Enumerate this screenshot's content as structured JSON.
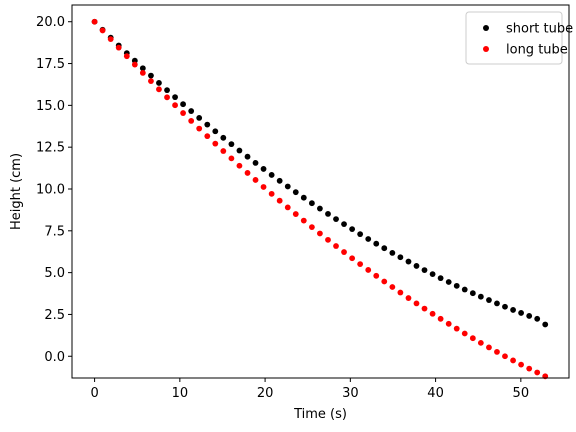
{
  "chart_data": {
    "type": "scatter",
    "title": "",
    "xlabel": "Time (s)",
    "ylabel": "Height (cm)",
    "xlim": [
      -2.65,
      55.65
    ],
    "ylim": [
      -1.3,
      21.0
    ],
    "xticks": [
      0,
      10,
      20,
      30,
      40,
      50
    ],
    "xtick_labels": [
      "0",
      "10",
      "20",
      "30",
      "40",
      "50"
    ],
    "yticks": [
      0.0,
      2.5,
      5.0,
      7.5,
      10.0,
      12.5,
      15.0,
      17.5,
      20.0
    ],
    "ytick_labels": [
      "0.0",
      "2.5",
      "5.0",
      "7.5",
      "10.0",
      "12.5",
      "15.0",
      "17.5",
      "20.0"
    ],
    "grid": false,
    "legend_position": "top-right",
    "x": [
      0.0,
      0.94,
      1.89,
      2.83,
      3.78,
      4.72,
      5.66,
      6.61,
      7.55,
      8.5,
      9.44,
      10.38,
      11.33,
      12.27,
      13.22,
      14.16,
      15.1,
      16.05,
      16.99,
      17.94,
      18.88,
      19.82,
      20.77,
      21.71,
      22.66,
      23.6,
      24.54,
      25.49,
      26.43,
      27.38,
      28.32,
      29.26,
      30.21,
      31.15,
      32.1,
      33.04,
      33.98,
      34.93,
      35.87,
      36.82,
      37.76,
      38.7,
      39.65,
      40.59,
      41.54,
      42.48,
      43.42,
      44.37,
      45.31,
      46.26,
      47.2,
      48.14,
      49.09,
      50.03,
      50.98,
      51.92,
      52.86
    ],
    "series": [
      {
        "name": "short tube",
        "color": "#000000",
        "values": [
          20.0,
          19.52,
          19.05,
          18.58,
          18.12,
          17.67,
          17.22,
          16.78,
          16.34,
          15.91,
          15.49,
          15.07,
          14.66,
          14.25,
          13.85,
          13.45,
          13.06,
          12.68,
          12.3,
          11.93,
          11.56,
          11.2,
          10.84,
          10.49,
          10.15,
          9.81,
          9.48,
          9.15,
          8.83,
          8.51,
          8.2,
          7.9,
          7.6,
          7.3,
          7.01,
          6.73,
          6.46,
          6.18,
          5.92,
          5.66,
          5.4,
          5.15,
          4.91,
          4.67,
          4.44,
          4.21,
          3.99,
          3.77,
          3.56,
          3.36,
          3.16,
          2.96,
          2.77,
          2.59,
          2.41,
          2.24,
          1.9
        ]
      },
      {
        "name": "long tube",
        "color": "#ff0000",
        "values": [
          20.0,
          19.48,
          18.96,
          18.45,
          17.94,
          17.44,
          16.94,
          16.45,
          15.96,
          15.48,
          15.01,
          14.54,
          14.07,
          13.61,
          13.16,
          12.71,
          12.27,
          11.83,
          11.39,
          10.96,
          10.54,
          10.12,
          9.71,
          9.3,
          8.9,
          8.5,
          8.11,
          7.72,
          7.34,
          6.96,
          6.59,
          6.23,
          5.86,
          5.51,
          5.16,
          4.81,
          4.47,
          4.14,
          3.81,
          3.48,
          3.16,
          2.85,
          2.54,
          2.24,
          1.94,
          1.65,
          1.36,
          1.08,
          0.8,
          0.53,
          0.26,
          0.0,
          -0.25,
          -0.5,
          -0.74,
          -0.97,
          -1.2
        ]
      }
    ]
  }
}
